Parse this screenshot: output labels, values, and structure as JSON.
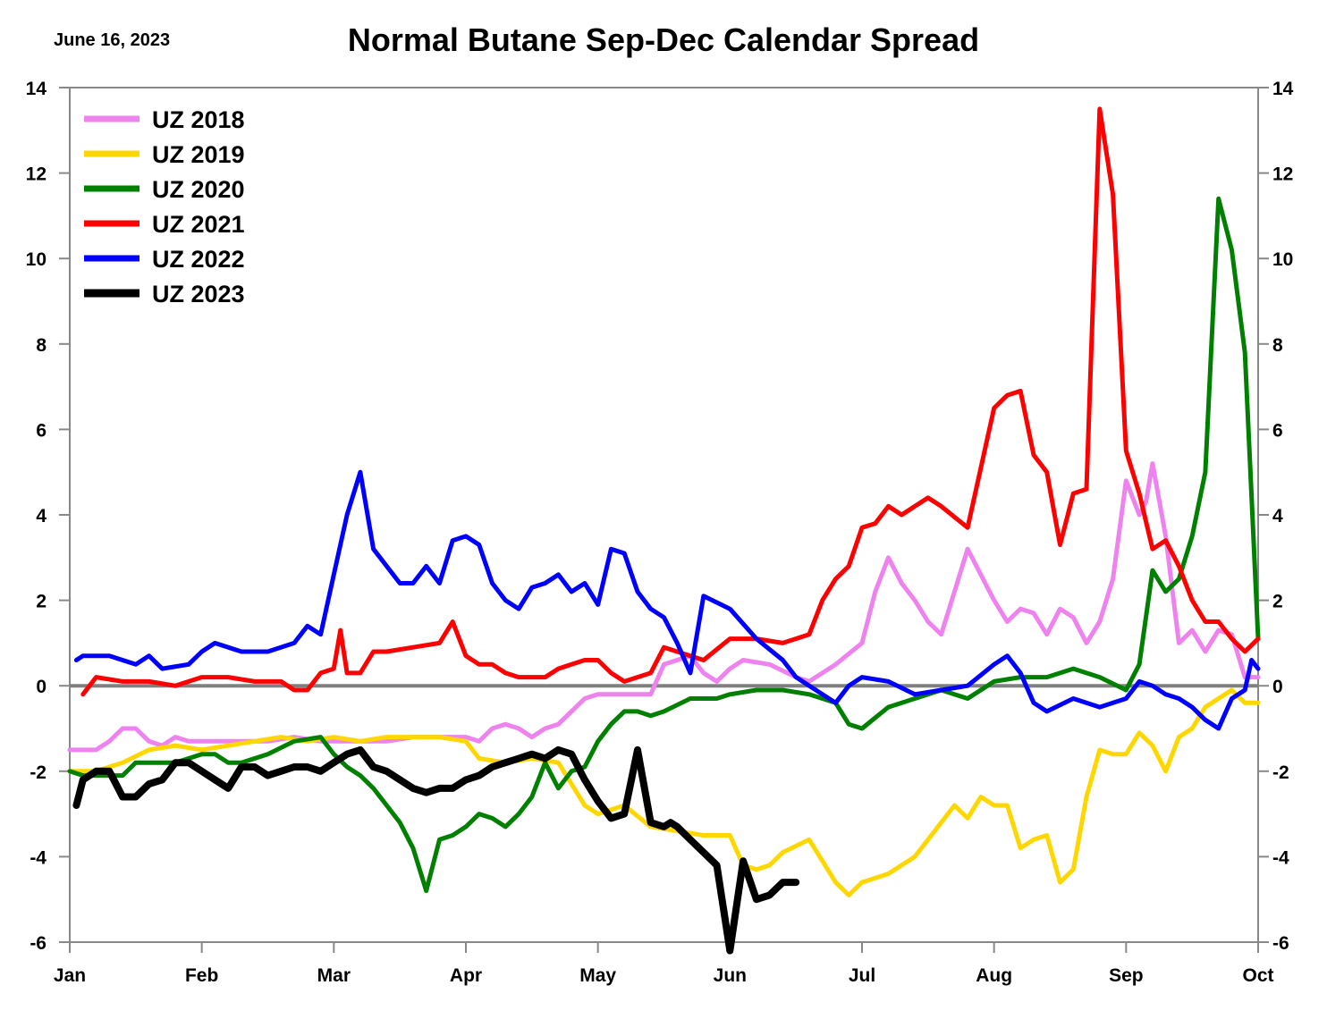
{
  "header": {
    "date": "June 16, 2023",
    "title": "Normal Butane Sep-Dec Calendar Spread"
  },
  "chart_data": {
    "type": "line",
    "title": "Normal Butane Sep-Dec Calendar Spread",
    "xlabel": "",
    "ylabel": "",
    "ylim": [
      -6,
      14
    ],
    "yticks": [
      -6,
      -4,
      -2,
      0,
      2,
      4,
      6,
      8,
      10,
      12,
      14
    ],
    "x_ticks": [
      "Jan",
      "Feb",
      "Mar",
      "Apr",
      "May",
      "Jun",
      "Jul",
      "Aug",
      "Sep",
      "Oct"
    ],
    "x_unit_note": "x values are months elapsed since Jan 1 (0 = Jan, 9 = Oct)",
    "zero_line": true,
    "legend_position": "top-left",
    "series": [
      {
        "name": "UZ 2018",
        "color": "#EE82EE",
        "width": 5,
        "x": [
          0,
          0.2,
          0.3,
          0.4,
          0.5,
          0.6,
          0.7,
          0.8,
          0.9,
          1.0,
          1.1,
          1.2,
          1.3,
          1.5,
          1.7,
          1.9,
          2.0,
          2.2,
          2.4,
          2.6,
          2.8,
          3.0,
          3.1,
          3.2,
          3.3,
          3.4,
          3.5,
          3.6,
          3.7,
          3.8,
          3.9,
          4.0,
          4.2,
          4.4,
          4.5,
          4.7,
          4.8,
          4.9,
          5.0,
          5.1,
          5.3,
          5.5,
          5.6,
          5.8,
          6.0,
          6.1,
          6.2,
          6.3,
          6.4,
          6.5,
          6.6,
          6.7,
          6.8,
          7.0,
          7.1,
          7.2,
          7.3,
          7.4,
          7.5,
          7.6,
          7.7,
          7.8,
          7.9,
          8.0,
          8.1,
          8.15,
          8.2,
          8.3,
          8.4,
          8.5,
          8.6,
          8.7,
          8.8,
          8.9,
          9.0
        ],
        "y": [
          -1.5,
          -1.5,
          -1.3,
          -1.0,
          -1.0,
          -1.3,
          -1.4,
          -1.2,
          -1.3,
          -1.3,
          -1.3,
          -1.3,
          -1.3,
          -1.3,
          -1.2,
          -1.3,
          -1.3,
          -1.3,
          -1.3,
          -1.2,
          -1.2,
          -1.2,
          -1.3,
          -1.0,
          -0.9,
          -1.0,
          -1.2,
          -1.0,
          -0.9,
          -0.6,
          -0.3,
          -0.2,
          -0.2,
          -0.2,
          0.5,
          0.7,
          0.3,
          0.1,
          0.4,
          0.6,
          0.5,
          0.2,
          0.1,
          0.5,
          1.0,
          2.2,
          3.0,
          2.4,
          2.0,
          1.5,
          1.2,
          2.2,
          3.2,
          2.0,
          1.5,
          1.8,
          1.7,
          1.2,
          1.8,
          1.6,
          1.0,
          1.5,
          2.5,
          4.8,
          4.0,
          4.3,
          5.2,
          3.5,
          1.0,
          1.3,
          0.8,
          1.3,
          1.2,
          0.2,
          0.2
        ]
      },
      {
        "name": "UZ 2019",
        "color": "#FFD700",
        "width": 5,
        "x": [
          0,
          0.2,
          0.4,
          0.6,
          0.8,
          1.0,
          1.2,
          1.4,
          1.6,
          1.8,
          2.0,
          2.2,
          2.4,
          2.6,
          2.8,
          3.0,
          3.1,
          3.3,
          3.5,
          3.7,
          3.9,
          4.0,
          4.2,
          4.4,
          4.6,
          4.8,
          5.0,
          5.1,
          5.2,
          5.3,
          5.4,
          5.6,
          5.8,
          5.9,
          6.0,
          6.2,
          6.4,
          6.6,
          6.7,
          6.8,
          6.9,
          7.0,
          7.1,
          7.2,
          7.3,
          7.4,
          7.5,
          7.6,
          7.7,
          7.8,
          7.9,
          8.0,
          8.1,
          8.2,
          8.3,
          8.4,
          8.5,
          8.6,
          8.7,
          8.8,
          8.9,
          9.0
        ],
        "y": [
          -2.0,
          -2.0,
          -1.8,
          -1.5,
          -1.4,
          -1.5,
          -1.4,
          -1.3,
          -1.2,
          -1.3,
          -1.2,
          -1.3,
          -1.2,
          -1.2,
          -1.2,
          -1.3,
          -1.7,
          -1.8,
          -1.7,
          -1.8,
          -2.8,
          -3.0,
          -2.8,
          -3.3,
          -3.4,
          -3.5,
          -3.5,
          -4.2,
          -4.3,
          -4.2,
          -3.9,
          -3.6,
          -4.6,
          -4.9,
          -4.6,
          -4.4,
          -4.0,
          -3.2,
          -2.8,
          -3.1,
          -2.6,
          -2.8,
          -2.8,
          -3.8,
          -3.6,
          -3.5,
          -4.6,
          -4.3,
          -2.6,
          -1.5,
          -1.6,
          -1.6,
          -1.1,
          -1.4,
          -2.0,
          -1.2,
          -1.0,
          -0.5,
          -0.3,
          -0.1,
          -0.4,
          -0.4
        ]
      },
      {
        "name": "UZ 2020",
        "color": "#008000",
        "width": 5,
        "x": [
          0,
          0.1,
          0.2,
          0.3,
          0.4,
          0.5,
          0.6,
          0.8,
          1.0,
          1.1,
          1.2,
          1.3,
          1.5,
          1.7,
          1.9,
          2.0,
          2.1,
          2.2,
          2.3,
          2.4,
          2.5,
          2.6,
          2.7,
          2.8,
          2.9,
          3.0,
          3.1,
          3.2,
          3.3,
          3.4,
          3.5,
          3.6,
          3.7,
          3.8,
          3.9,
          4.0,
          4.1,
          4.2,
          4.3,
          4.4,
          4.5,
          4.7,
          4.9,
          5.0,
          5.2,
          5.4,
          5.6,
          5.8,
          5.9,
          6.0,
          6.2,
          6.4,
          6.6,
          6.8,
          7.0,
          7.2,
          7.4,
          7.6,
          7.8,
          8.0,
          8.1,
          8.2,
          8.3,
          8.4,
          8.5,
          8.6,
          8.7,
          8.8,
          8.9,
          9.0
        ],
        "y": [
          -2.0,
          -2.1,
          -2.1,
          -2.1,
          -2.1,
          -1.8,
          -1.8,
          -1.8,
          -1.6,
          -1.6,
          -1.8,
          -1.8,
          -1.6,
          -1.3,
          -1.2,
          -1.6,
          -1.9,
          -2.1,
          -2.4,
          -2.8,
          -3.2,
          -3.8,
          -4.8,
          -3.6,
          -3.5,
          -3.3,
          -3.0,
          -3.1,
          -3.3,
          -3.0,
          -2.6,
          -1.8,
          -2.4,
          -2.0,
          -1.9,
          -1.3,
          -0.9,
          -0.6,
          -0.6,
          -0.7,
          -0.6,
          -0.3,
          -0.3,
          -0.2,
          -0.1,
          -0.1,
          -0.2,
          -0.4,
          -0.9,
          -1.0,
          -0.5,
          -0.3,
          -0.1,
          -0.3,
          0.1,
          0.2,
          0.2,
          0.4,
          0.2,
          -0.1,
          0.5,
          2.7,
          2.2,
          2.5,
          3.5,
          5.0,
          11.4,
          10.2,
          7.8,
          1.1
        ]
      },
      {
        "name": "UZ 2021",
        "color": "#FF0000",
        "width": 5,
        "x": [
          0.1,
          0.2,
          0.4,
          0.6,
          0.8,
          1.0,
          1.2,
          1.4,
          1.6,
          1.7,
          1.8,
          1.9,
          2.0,
          2.05,
          2.1,
          2.2,
          2.3,
          2.4,
          2.6,
          2.8,
          2.9,
          3.0,
          3.1,
          3.2,
          3.3,
          3.4,
          3.5,
          3.6,
          3.7,
          3.8,
          3.9,
          4.0,
          4.1,
          4.2,
          4.4,
          4.5,
          4.6,
          4.7,
          4.8,
          5.0,
          5.2,
          5.4,
          5.6,
          5.7,
          5.8,
          5.9,
          6.0,
          6.1,
          6.2,
          6.3,
          6.4,
          6.5,
          6.6,
          6.8,
          7.0,
          7.1,
          7.2,
          7.3,
          7.4,
          7.5,
          7.6,
          7.7,
          7.8,
          7.9,
          8.0,
          8.1,
          8.2,
          8.3,
          8.4,
          8.5,
          8.6,
          8.7,
          8.8,
          8.9,
          9.0
        ],
        "y": [
          -0.2,
          0.2,
          0.1,
          0.1,
          0.0,
          0.2,
          0.2,
          0.1,
          0.1,
          -0.1,
          -0.1,
          0.3,
          0.4,
          1.3,
          0.3,
          0.3,
          0.8,
          0.8,
          0.9,
          1.0,
          1.5,
          0.7,
          0.5,
          0.5,
          0.3,
          0.2,
          0.2,
          0.2,
          0.4,
          0.5,
          0.6,
          0.6,
          0.3,
          0.1,
          0.3,
          0.9,
          0.8,
          0.7,
          0.6,
          1.1,
          1.1,
          1.0,
          1.2,
          2.0,
          2.5,
          2.8,
          3.7,
          3.8,
          4.2,
          4.0,
          4.2,
          4.4,
          4.2,
          3.7,
          6.5,
          6.8,
          6.9,
          5.4,
          5.0,
          3.3,
          4.5,
          4.6,
          13.5,
          11.5,
          5.5,
          4.5,
          3.2,
          3.4,
          2.8,
          2.0,
          1.5,
          1.5,
          1.1,
          0.8,
          1.1
        ]
      },
      {
        "name": "UZ 2022",
        "color": "#0000FF",
        "width": 5,
        "x": [
          0.05,
          0.1,
          0.3,
          0.5,
          0.6,
          0.7,
          0.9,
          1.0,
          1.1,
          1.3,
          1.5,
          1.7,
          1.8,
          1.9,
          2.0,
          2.1,
          2.2,
          2.3,
          2.4,
          2.5,
          2.6,
          2.7,
          2.8,
          2.9,
          3.0,
          3.1,
          3.2,
          3.3,
          3.4,
          3.5,
          3.6,
          3.7,
          3.8,
          3.9,
          4.0,
          4.1,
          4.2,
          4.3,
          4.4,
          4.5,
          4.6,
          4.7,
          4.8,
          5.0,
          5.2,
          5.4,
          5.5,
          5.6,
          5.8,
          5.9,
          6.0,
          6.2,
          6.4,
          6.6,
          6.8,
          7.0,
          7.1,
          7.2,
          7.3,
          7.4,
          7.6,
          7.8,
          8.0,
          8.1,
          8.2,
          8.3,
          8.4,
          8.5,
          8.6,
          8.7,
          8.8,
          8.9,
          8.95,
          9.0
        ],
        "y": [
          0.6,
          0.7,
          0.7,
          0.5,
          0.7,
          0.4,
          0.5,
          0.8,
          1.0,
          0.8,
          0.8,
          1.0,
          1.4,
          1.2,
          2.6,
          4.0,
          5.0,
          3.2,
          2.8,
          2.4,
          2.4,
          2.8,
          2.4,
          3.4,
          3.5,
          3.3,
          2.4,
          2.0,
          1.8,
          2.3,
          2.4,
          2.6,
          2.2,
          2.4,
          1.9,
          3.2,
          3.1,
          2.2,
          1.8,
          1.6,
          1.0,
          0.3,
          2.1,
          1.8,
          1.1,
          0.6,
          0.2,
          0.0,
          -0.4,
          0.0,
          0.2,
          0.1,
          -0.2,
          -0.1,
          0.0,
          0.5,
          0.7,
          0.3,
          -0.4,
          -0.6,
          -0.3,
          -0.5,
          -0.3,
          0.1,
          0.0,
          -0.2,
          -0.3,
          -0.5,
          -0.8,
          -1.0,
          -0.3,
          -0.1,
          0.6,
          0.4
        ]
      },
      {
        "name": "UZ 2023",
        "color": "#000000",
        "width": 8,
        "x": [
          0.05,
          0.1,
          0.2,
          0.3,
          0.4,
          0.5,
          0.6,
          0.7,
          0.8,
          0.9,
          1.0,
          1.1,
          1.2,
          1.3,
          1.4,
          1.5,
          1.6,
          1.7,
          1.8,
          1.9,
          2.0,
          2.1,
          2.2,
          2.3,
          2.4,
          2.5,
          2.6,
          2.7,
          2.8,
          2.9,
          3.0,
          3.1,
          3.2,
          3.3,
          3.4,
          3.5,
          3.6,
          3.7,
          3.8,
          3.9,
          4.0,
          4.1,
          4.2,
          4.3,
          4.4,
          4.5,
          4.55,
          4.6,
          4.7,
          4.8,
          4.9,
          5.0,
          5.1,
          5.2,
          5.3,
          5.4,
          5.5
        ],
        "y": [
          -2.8,
          -2.2,
          -2.0,
          -2.0,
          -2.6,
          -2.6,
          -2.3,
          -2.2,
          -1.8,
          -1.8,
          -2.0,
          -2.2,
          -2.4,
          -1.9,
          -1.9,
          -2.1,
          -2.0,
          -1.9,
          -1.9,
          -2.0,
          -1.8,
          -1.6,
          -1.5,
          -1.9,
          -2.0,
          -2.2,
          -2.4,
          -2.5,
          -2.4,
          -2.4,
          -2.2,
          -2.1,
          -1.9,
          -1.8,
          -1.7,
          -1.6,
          -1.7,
          -1.5,
          -1.6,
          -2.2,
          -2.7,
          -3.1,
          -3.0,
          -1.5,
          -3.2,
          -3.3,
          -3.2,
          -3.3,
          -3.6,
          -3.9,
          -4.2,
          -6.2,
          -4.1,
          -5.0,
          -4.9,
          -4.6,
          -4.6
        ]
      }
    ]
  }
}
